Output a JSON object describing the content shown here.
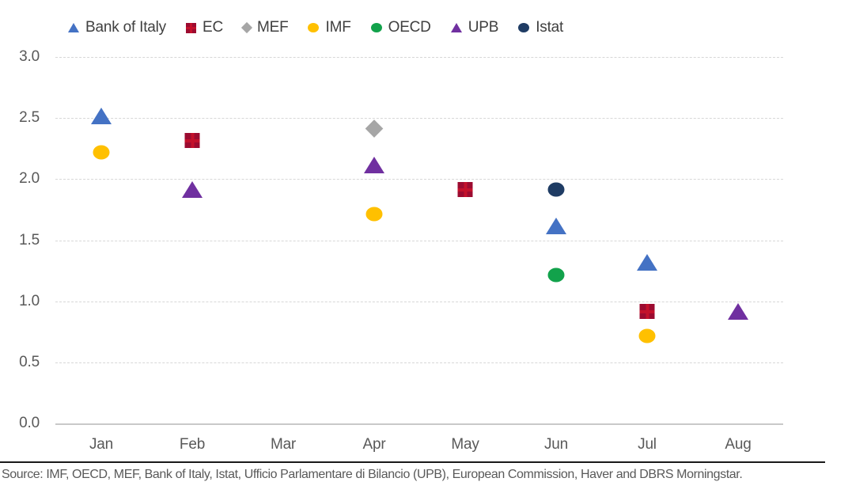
{
  "legend": [
    {
      "label": "Bank of Italy",
      "marker": "triangle",
      "color": "#4472C4"
    },
    {
      "label": "EC",
      "marker": "square",
      "color": "#9C0B30",
      "cross_color": "#C3112B"
    },
    {
      "label": "MEF",
      "marker": "diamond",
      "color": "#A6A6A6"
    },
    {
      "label": "IMF",
      "marker": "circle",
      "color": "#FFC000"
    },
    {
      "label": "OECD",
      "marker": "circle",
      "color": "#12A24B"
    },
    {
      "label": "UPB",
      "marker": "triangle",
      "color": "#7030A0"
    },
    {
      "label": "Istat",
      "marker": "circle",
      "color": "#1F3C64"
    }
  ],
  "chart_data": {
    "type": "scatter",
    "title": "",
    "xlabel": "",
    "ylabel": "",
    "categories": [
      "Jan",
      "Feb",
      "Mar",
      "Apr",
      "May",
      "Jun",
      "Jul",
      "Aug"
    ],
    "ylim": [
      0.0,
      3.0
    ],
    "yticks": [
      "0.0",
      "0.5",
      "1.0",
      "1.5",
      "2.0",
      "2.5",
      "3.0"
    ],
    "grid": "horizontal-dashed",
    "legend_position": "top",
    "series": [
      {
        "name": "Bank of Italy",
        "marker": "triangle",
        "color": "#4472C4",
        "points": [
          {
            "month": "Jan",
            "value": 2.5
          },
          {
            "month": "Jun",
            "value": 1.6
          },
          {
            "month": "Jul",
            "value": 1.3
          }
        ]
      },
      {
        "name": "EC",
        "marker": "square",
        "color": "#9C0B30",
        "cross_color": "#C3112B",
        "points": [
          {
            "month": "Feb",
            "value": 2.3
          },
          {
            "month": "May",
            "value": 1.9
          },
          {
            "month": "Jul",
            "value": 0.9
          }
        ]
      },
      {
        "name": "MEF",
        "marker": "diamond",
        "color": "#A6A6A6",
        "points": [
          {
            "month": "Apr",
            "value": 2.4
          }
        ]
      },
      {
        "name": "IMF",
        "marker": "circle",
        "color": "#FFC000",
        "points": [
          {
            "month": "Jan",
            "value": 2.2
          },
          {
            "month": "Apr",
            "value": 1.7
          },
          {
            "month": "Jul",
            "value": 0.7
          }
        ]
      },
      {
        "name": "OECD",
        "marker": "circle",
        "color": "#12A24B",
        "points": [
          {
            "month": "Jun",
            "value": 1.2
          }
        ]
      },
      {
        "name": "UPB",
        "marker": "triangle",
        "color": "#7030A0",
        "points": [
          {
            "month": "Feb",
            "value": 1.9
          },
          {
            "month": "Apr",
            "value": 2.1
          },
          {
            "month": "Aug",
            "value": 0.9
          }
        ]
      },
      {
        "name": "Istat",
        "marker": "circle",
        "color": "#1F3C64",
        "points": [
          {
            "month": "Jun",
            "value": 1.9
          }
        ]
      }
    ]
  },
  "footer": {
    "source": "Source: IMF, OECD, MEF, Bank of Italy, Istat, Ufficio Parlamentare di Bilancio (UPB), European Commission, Haver and DBRS Morningstar."
  }
}
